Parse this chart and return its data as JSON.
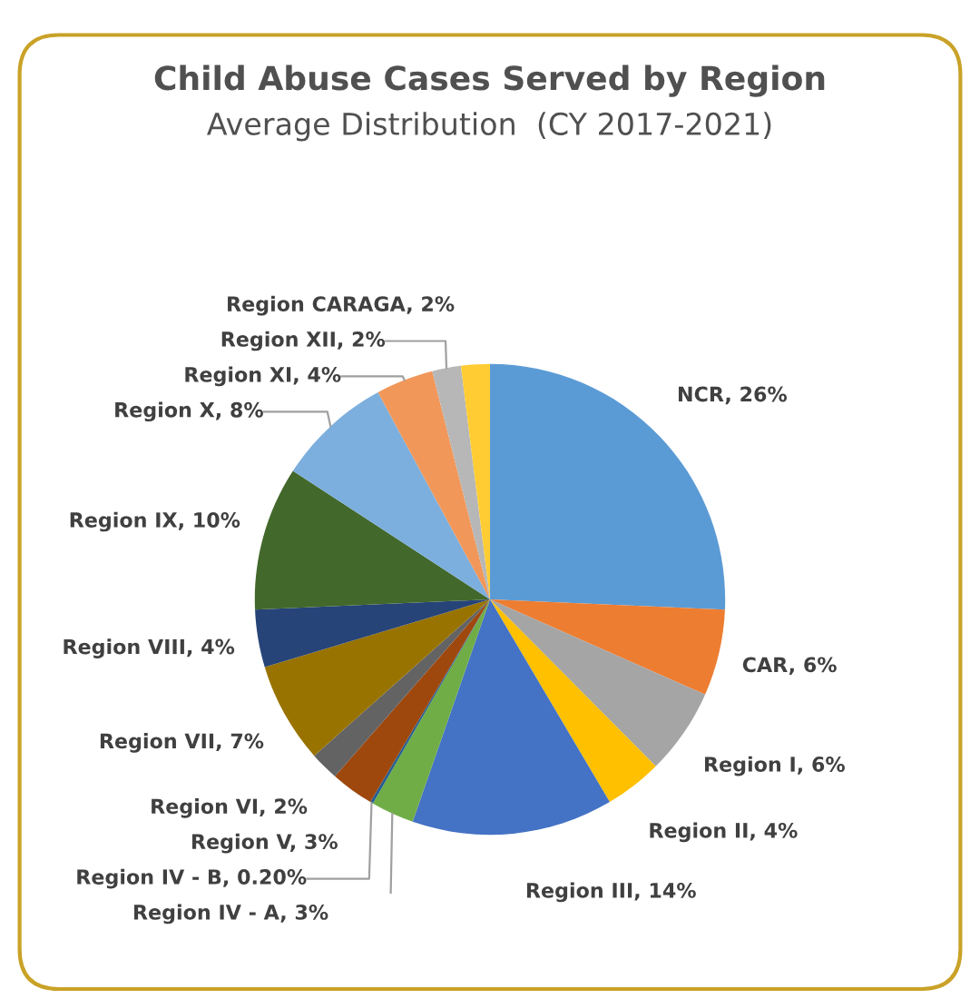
{
  "chart_data": {
    "type": "pie",
    "title": "Child Abuse Cases Served by Region",
    "subtitle": "Average Distribution  (CY 2017-2021)",
    "categories": [
      "NCR",
      "CAR",
      "Region I",
      "Region II",
      "Region III",
      "Region IV - A",
      "Region IV - B",
      "Region V",
      "Region VI",
      "Region VII",
      "Region VIII",
      "Region IX",
      "Region X",
      "Region XI",
      "Region XII",
      "Region CARAGA"
    ],
    "values": [
      26,
      6,
      6,
      4,
      14,
      3,
      0.2,
      3,
      2,
      7,
      4,
      10,
      8,
      4,
      2,
      2
    ],
    "value_labels": [
      "26%",
      "6%",
      "6%",
      "4%",
      "14%",
      "3%",
      "0.20%",
      "3%",
      "2%",
      "7%",
      "4%",
      "10%",
      "8%",
      "4%",
      "2%",
      "2%"
    ],
    "colors": [
      "#5b9bd5",
      "#ed7d31",
      "#a5a5a5",
      "#ffc000",
      "#4472c4",
      "#70ad47",
      "#255e91",
      "#9e480e",
      "#636363",
      "#997300",
      "#264478",
      "#43682b",
      "#7cafdd",
      "#f1975a",
      "#b7b7b7",
      "#ffcd33"
    ]
  }
}
